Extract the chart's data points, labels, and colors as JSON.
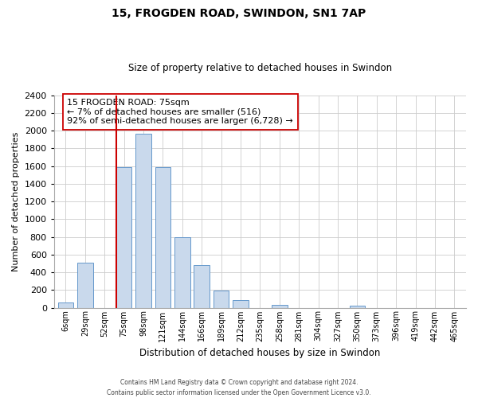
{
  "title": "15, FROGDEN ROAD, SWINDON, SN1 7AP",
  "subtitle": "Size of property relative to detached houses in Swindon",
  "xlabel": "Distribution of detached houses by size in Swindon",
  "ylabel": "Number of detached properties",
  "bar_labels": [
    "6sqm",
    "29sqm",
    "52sqm",
    "75sqm",
    "98sqm",
    "121sqm",
    "144sqm",
    "166sqm",
    "189sqm",
    "212sqm",
    "235sqm",
    "258sqm",
    "281sqm",
    "304sqm",
    "327sqm",
    "350sqm",
    "373sqm",
    "396sqm",
    "419sqm",
    "442sqm",
    "465sqm"
  ],
  "bar_values": [
    55,
    510,
    0,
    1590,
    1960,
    1590,
    800,
    480,
    190,
    90,
    0,
    30,
    0,
    0,
    0,
    20,
    0,
    0,
    0,
    0,
    0
  ],
  "bar_color": "#c9d9ec",
  "bar_edge_color": "#6699cc",
  "vline_color": "#cc0000",
  "annotation_title": "15 FROGDEN ROAD: 75sqm",
  "annotation_line1": "← 7% of detached houses are smaller (516)",
  "annotation_line2": "92% of semi-detached houses are larger (6,728) →",
  "annotation_box_color": "#ffffff",
  "annotation_box_edge": "#cc0000",
  "ylim": [
    0,
    2400
  ],
  "yticks": [
    0,
    200,
    400,
    600,
    800,
    1000,
    1200,
    1400,
    1600,
    1800,
    2000,
    2200,
    2400
  ],
  "footnote1": "Contains HM Land Registry data © Crown copyright and database right 2024.",
  "footnote2": "Contains public sector information licensed under the Open Government Licence v3.0.",
  "bg_color": "#ffffff",
  "grid_color": "#cccccc"
}
